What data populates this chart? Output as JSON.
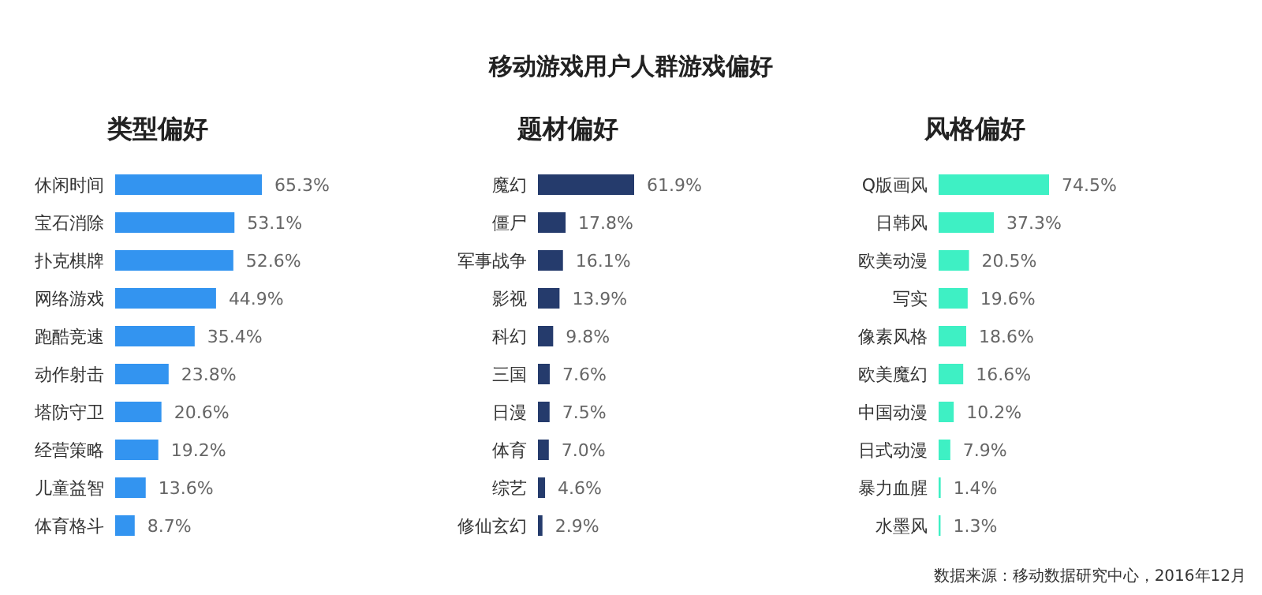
{
  "chart_data": [
    {
      "type": "other",
      "title": "移动游戏用户人群游戏偏好"
    },
    {
      "type": "bar",
      "orientation": "horizontal",
      "title": "类型偏好",
      "categories": [
        "休闲时间",
        "宝石消除",
        "扑克棋牌",
        "网络游戏",
        "跑酷竞速",
        "动作射击",
        "塔防守卫",
        "经营策略",
        "儿童益智",
        "体育格斗"
      ],
      "color": "#3394f0",
      "values": [
        65.3,
        53.1,
        52.6,
        44.9,
        35.4,
        23.8,
        20.6,
        19.2,
        13.6,
        8.7
      ],
      "value_labels": [
        "65.3%",
        "53.1%",
        "52.6%",
        "44.9%",
        "35.4%",
        "23.8%",
        "20.6%",
        "19.2%",
        "13.6%",
        "8.7%"
      ]
    },
    {
      "type": "bar",
      "orientation": "horizontal",
      "title": "题材偏好",
      "categories": [
        "魔幻",
        "僵尸",
        "军事战争",
        "影视",
        "科幻",
        "三国",
        "日漫",
        "体育",
        "综艺",
        "修仙玄幻"
      ],
      "color": "#253b6c",
      "values": [
        61.9,
        17.8,
        16.1,
        13.9,
        9.8,
        7.6,
        7.5,
        7.0,
        4.6,
        2.9
      ],
      "value_labels": [
        "61.9%",
        "17.8%",
        "16.1%",
        "13.9%",
        "9.8%",
        "7.6%",
        "7.5%",
        "7.0%",
        "4.6%",
        "2.9%"
      ]
    },
    {
      "type": "bar",
      "orientation": "horizontal",
      "title": "风格偏好",
      "categories": [
        "Q版画风",
        "日韩风",
        "欧美动漫",
        "写实",
        "像素风格",
        "欧美魔幻",
        "中国动漫",
        "日式动漫",
        "暴力血腥",
        "水墨风"
      ],
      "color": "#3ef0c4",
      "values": [
        74.5,
        37.3,
        20.5,
        19.6,
        18.6,
        16.6,
        10.2,
        7.9,
        1.4,
        1.3
      ],
      "value_labels": [
        "74.5%",
        "37.3%",
        "20.5%",
        "19.6%",
        "18.6%",
        "16.6%",
        "10.2%",
        "7.9%",
        "1.4%",
        "1.3%"
      ],
      "annotations": [
        "数据来源：移动数据研究中心，2016年12月"
      ]
    }
  ]
}
